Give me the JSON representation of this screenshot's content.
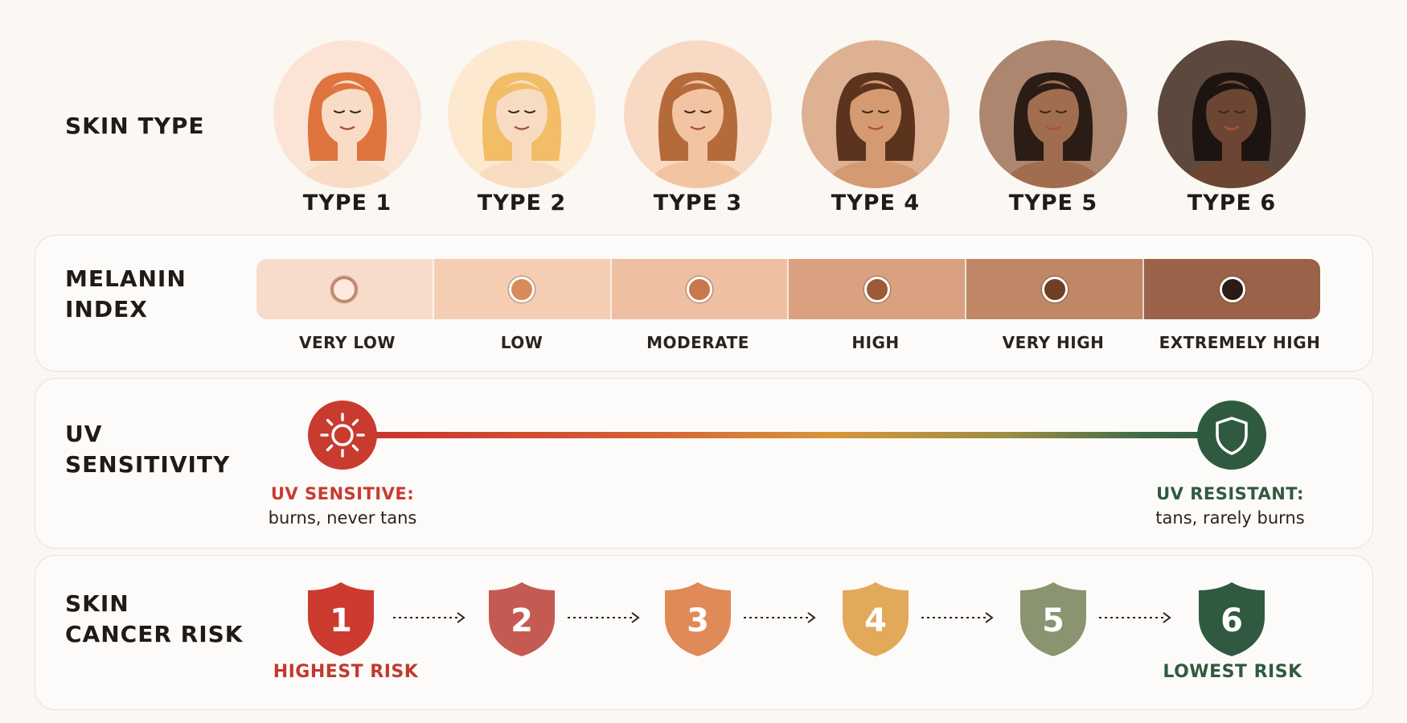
{
  "skin_type": {
    "title": "SKIN TYPE",
    "types": [
      {
        "label": "TYPE 1",
        "bg": "#fbe4d5",
        "skin": "#f9dcc6",
        "hair": "#e0743f"
      },
      {
        "label": "TYPE 2",
        "bg": "#fde9cf",
        "skin": "#f8dcc2",
        "hair": "#f2bd66"
      },
      {
        "label": "TYPE 3",
        "bg": "#f8d9c3",
        "skin": "#f2c4a2",
        "hair": "#b56a3a"
      },
      {
        "label": "TYPE 4",
        "bg": "#ddb192",
        "skin": "#d49a72",
        "hair": "#5c341d"
      },
      {
        "label": "TYPE 5",
        "bg": "#ad8670",
        "skin": "#a16d4f",
        "hair": "#2b1c15"
      },
      {
        "label": "TYPE 6",
        "bg": "#5d483e",
        "skin": "#6c4633",
        "hair": "#1c1411"
      }
    ]
  },
  "melanin_index": {
    "title_line1": "MELANIN",
    "title_line2": "INDEX",
    "levels": [
      {
        "label": "VERY LOW",
        "bar": "#f8dccb",
        "dot": "#fbe9dd",
        "dot_border": "#c7836a"
      },
      {
        "label": "LOW",
        "bar": "#f5cdb3",
        "dot": "#d98a5a",
        "dot_border": "#ffffff"
      },
      {
        "label": "MODERATE",
        "bar": "#eebfa0",
        "dot": "#c8784a",
        "dot_border": "#ffffff"
      },
      {
        "label": "HIGH",
        "bar": "#d9a17f",
        "dot": "#9c5a36",
        "dot_border": "#ffffff"
      },
      {
        "label": "VERY HIGH",
        "bar": "#bf8766",
        "dot": "#6e3e25",
        "dot_border": "#ffffff"
      },
      {
        "label": "EXTREMELY HIGH",
        "bar": "#9a6248",
        "dot": "#2c1a14",
        "dot_border": "#ffffff"
      }
    ]
  },
  "uv_sensitivity": {
    "title_line1": "UV",
    "title_line2": "SENSITIVITY",
    "left_title": "UV SENSITIVE:",
    "left_desc": "burns, never tans",
    "right_title": "UV RESISTANT:",
    "right_desc": "tans, rarely burns",
    "left_icon": "sun-icon",
    "right_icon": "shield-icon",
    "left_color": "#c93a2f",
    "right_color": "#2f5a40"
  },
  "skin_cancer_risk": {
    "title_line1": "SKIN",
    "title_line2": "CANCER RISK",
    "levels": [
      {
        "number": "1",
        "color": "#cc3a30"
      },
      {
        "number": "2",
        "color": "#c55a52"
      },
      {
        "number": "3",
        "color": "#e08a58"
      },
      {
        "number": "4",
        "color": "#e3a95a"
      },
      {
        "number": "5",
        "color": "#8a9470"
      },
      {
        "number": "6",
        "color": "#2f5a40"
      }
    ],
    "left_label": "HIGHEST RISK",
    "right_label": "LOWEST RISK",
    "left_color": "#c13a30",
    "right_color": "#2f5a40"
  }
}
